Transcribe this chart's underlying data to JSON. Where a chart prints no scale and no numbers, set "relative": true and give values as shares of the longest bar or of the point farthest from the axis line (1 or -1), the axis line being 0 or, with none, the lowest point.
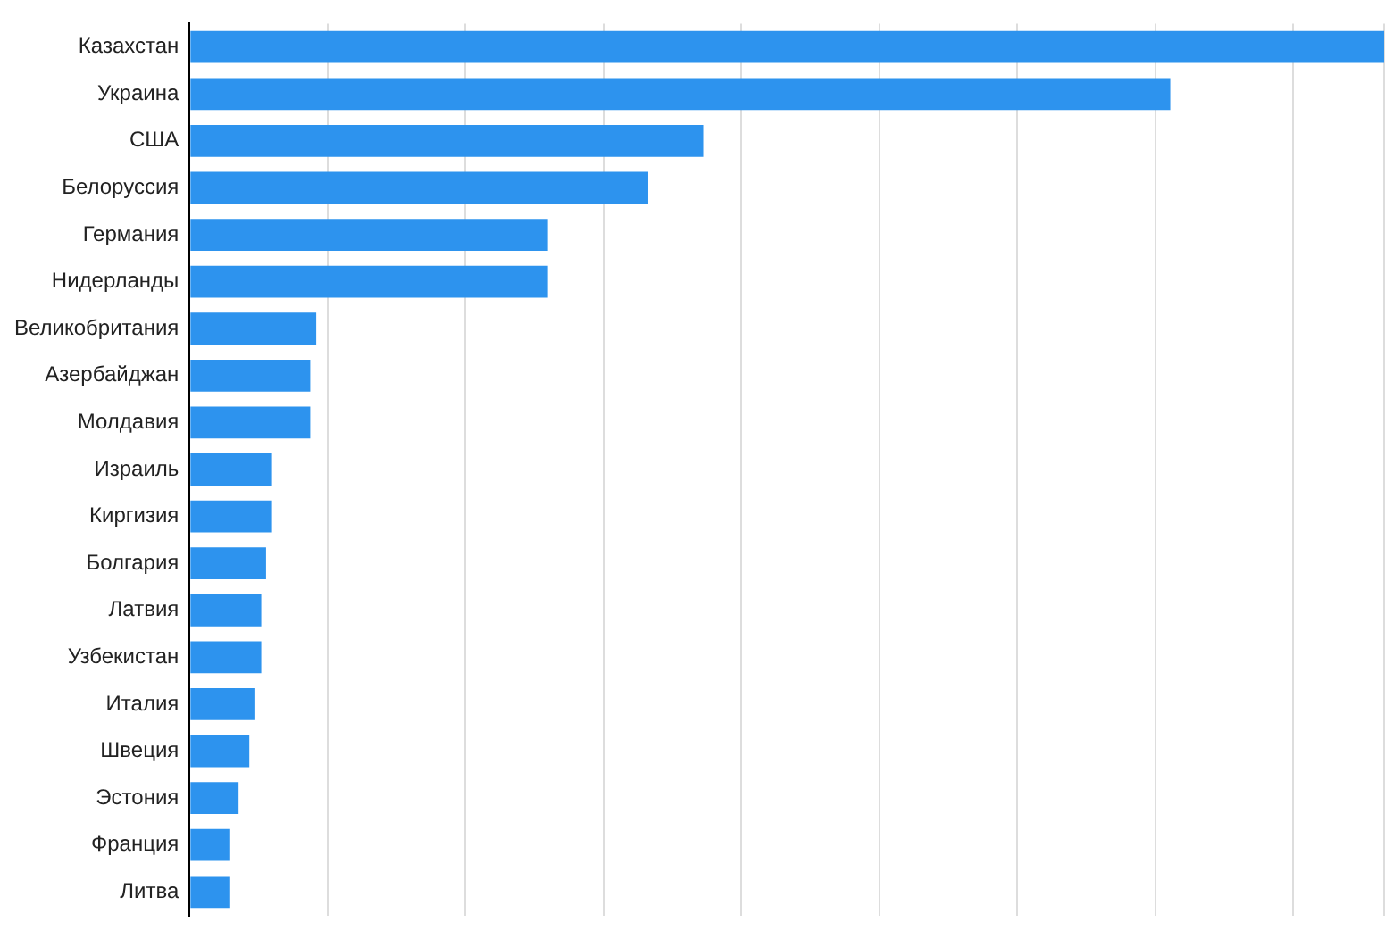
{
  "chart_data": {
    "type": "bar",
    "orientation": "horizontal",
    "relative": true,
    "grid": "x",
    "legend": false,
    "color": "#2d93ee",
    "categories": [
      "Казахстан",
      "Украина",
      "США",
      "Белоруссия",
      "Германия",
      "Нидерланды",
      "Великобритания",
      "Азербайджан",
      "Молдавия",
      "Израиль",
      "Киргизия",
      "Болгария",
      "Латвия",
      "Узбекистан",
      "Италия",
      "Швеция",
      "Эстония",
      "Франция",
      "Литва"
    ],
    "values": [
      1,
      0.821,
      0.43,
      0.384,
      0.3,
      0.3,
      0.106,
      0.101,
      0.101,
      0.069,
      0.069,
      0.064,
      0.06,
      0.06,
      0.055,
      0.05,
      0.041,
      0.034,
      0.034
    ]
  }
}
